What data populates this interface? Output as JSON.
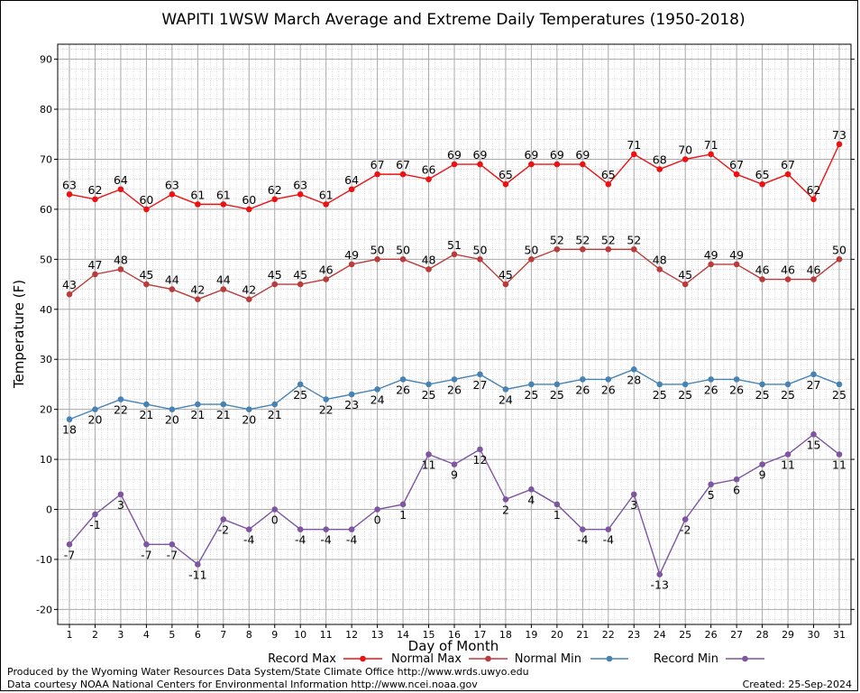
{
  "chart_data": {
    "type": "line",
    "title": "WAPITI 1WSW March Average and Extreme Daily Temperatures (1950-2018)",
    "xlabel": "Day of Month",
    "ylabel": "Temperature (F)",
    "x": [
      1,
      2,
      3,
      4,
      5,
      6,
      7,
      8,
      9,
      10,
      11,
      12,
      13,
      14,
      15,
      16,
      17,
      18,
      19,
      20,
      21,
      22,
      23,
      24,
      25,
      26,
      27,
      28,
      29,
      30,
      31
    ],
    "xlim": [
      1,
      31
    ],
    "ylim": [
      -23,
      93
    ],
    "yticks": [
      -20,
      -10,
      0,
      10,
      20,
      30,
      40,
      50,
      60,
      70,
      80,
      90
    ],
    "grid": true,
    "legend_position": "bottom",
    "series": [
      {
        "name": "Record Max",
        "color": "#ee1111",
        "label_pos": "above",
        "values": [
          63,
          62,
          64,
          60,
          63,
          61,
          61,
          60,
          62,
          63,
          61,
          64,
          67,
          67,
          66,
          69,
          69,
          65,
          69,
          69,
          69,
          65,
          71,
          68,
          70,
          71,
          67,
          65,
          67,
          62,
          73
        ]
      },
      {
        "name": "Normal Max",
        "color": "#bb3b3b",
        "label_pos": "above",
        "values": [
          43,
          47,
          48,
          45,
          44,
          42,
          44,
          42,
          45,
          45,
          46,
          49,
          50,
          50,
          48,
          51,
          50,
          45,
          50,
          52,
          52,
          52,
          52,
          48,
          45,
          49,
          49,
          46,
          46,
          46,
          50
        ]
      },
      {
        "name": "Normal Min",
        "color": "#4682b4",
        "label_pos": "below",
        "values": [
          18,
          20,
          22,
          21,
          20,
          21,
          21,
          20,
          21,
          25,
          22,
          23,
          24,
          26,
          25,
          26,
          27,
          24,
          25,
          25,
          26,
          26,
          28,
          25,
          25,
          26,
          26,
          25,
          25,
          27,
          25
        ]
      },
      {
        "name": "Record Min",
        "color": "#7d55a0",
        "label_pos": "below",
        "values": [
          -7,
          -1,
          3,
          -7,
          -7,
          -11,
          -2,
          -4,
          0,
          -4,
          -4,
          -4,
          0,
          1,
          11,
          9,
          12,
          2,
          4,
          1,
          -4,
          -4,
          3,
          -13,
          -2,
          5,
          6,
          9,
          11,
          15,
          11
        ]
      }
    ]
  },
  "footer": {
    "line1": "Produced by the Wyoming Water Resources Data System/State Climate Office http://www.wrds.uwyo.edu",
    "line2": "Data courtesy NOAA National Centers for Environmental Information http://www.ncei.noaa.gov",
    "created": "Created:  25-Sep-2024"
  }
}
